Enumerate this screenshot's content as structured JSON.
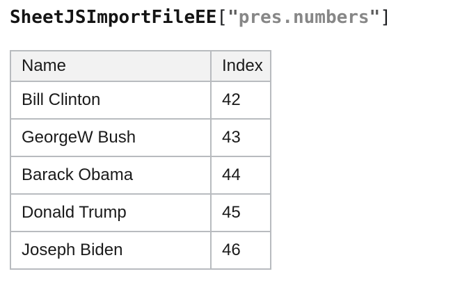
{
  "title": {
    "variable": "SheetJSImportFileEE",
    "open_bracket": "[",
    "open_quote": "\"",
    "sheet_name": "pres.numbers",
    "close_quote": "\"",
    "close_bracket": "]"
  },
  "table": {
    "columns": [
      "Name",
      "Index"
    ],
    "rows": [
      {
        "name": "Bill Clinton",
        "index": "42"
      },
      {
        "name": "GeorgeW Bush",
        "index": "43"
      },
      {
        "name": "Barack Obama",
        "index": "44"
      },
      {
        "name": "Donald Trump",
        "index": "45"
      },
      {
        "name": "Joseph Biden",
        "index": "46"
      }
    ]
  },
  "colors": {
    "page_background": "#ffffff",
    "heading_text": "#141414",
    "heading_string": "#878787",
    "heading_quote": "#5e5e5e",
    "table_border": "#b8bbbf",
    "table_header_background": "#f2f2f2",
    "table_text": "#1a1a1a"
  }
}
